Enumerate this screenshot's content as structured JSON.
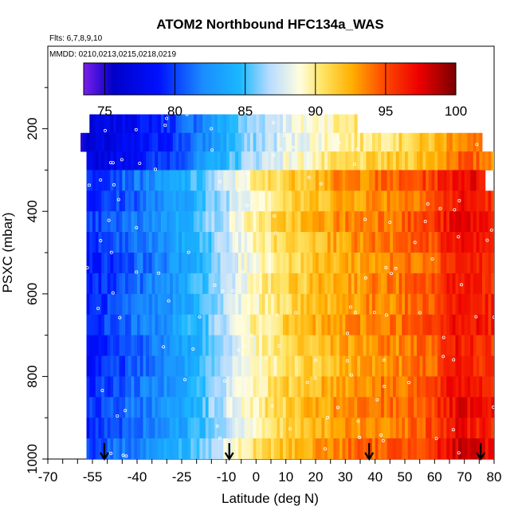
{
  "chart_data": {
    "type": "heatmap",
    "title": "ATOM2 Northbound HFC134a_WAS",
    "subtitle_flights": "Flts: 6,7,8,9,10",
    "subtitle_dates": "MMDD: 0210,0213,0215,0218,0219",
    "xlabel": "Latitude (deg N)",
    "ylabel": "PSXC (mbar)",
    "xlim": [
      -70,
      80
    ],
    "ylim": [
      1000,
      0
    ],
    "x_ticks": [
      -70,
      -55,
      -40,
      -25,
      -10,
      0,
      10,
      20,
      30,
      40,
      50,
      60,
      70,
      80
    ],
    "y_ticks": [
      200,
      400,
      600,
      800,
      1000
    ],
    "colorbar": {
      "range": [
        73.5,
        100
      ],
      "ticks": [
        75,
        80,
        85,
        90,
        95,
        100
      ]
    },
    "arrow_latitudes": [
      -51,
      -9,
      38,
      75.5
    ],
    "profile": {
      "lat": [
        -58,
        -45,
        -30,
        -20,
        -12,
        -5,
        0,
        10,
        20,
        30,
        40,
        50,
        60,
        68,
        75,
        80
      ],
      "value": [
        79,
        80.5,
        82.5,
        84.5,
        86.5,
        88.5,
        89.5,
        91,
        92,
        93,
        93.5,
        94,
        95,
        97,
        96.5,
        96
      ]
    },
    "layers_top_mbar": [
      165,
      210,
      255,
      300,
      350,
      400,
      450,
      500,
      550,
      600,
      650,
      700,
      750,
      800,
      850,
      900,
      950
    ],
    "layers_bottom_mbar": [
      210,
      255,
      300,
      350,
      400,
      450,
      500,
      550,
      600,
      650,
      700,
      750,
      800,
      850,
      900,
      950,
      1000
    ]
  }
}
